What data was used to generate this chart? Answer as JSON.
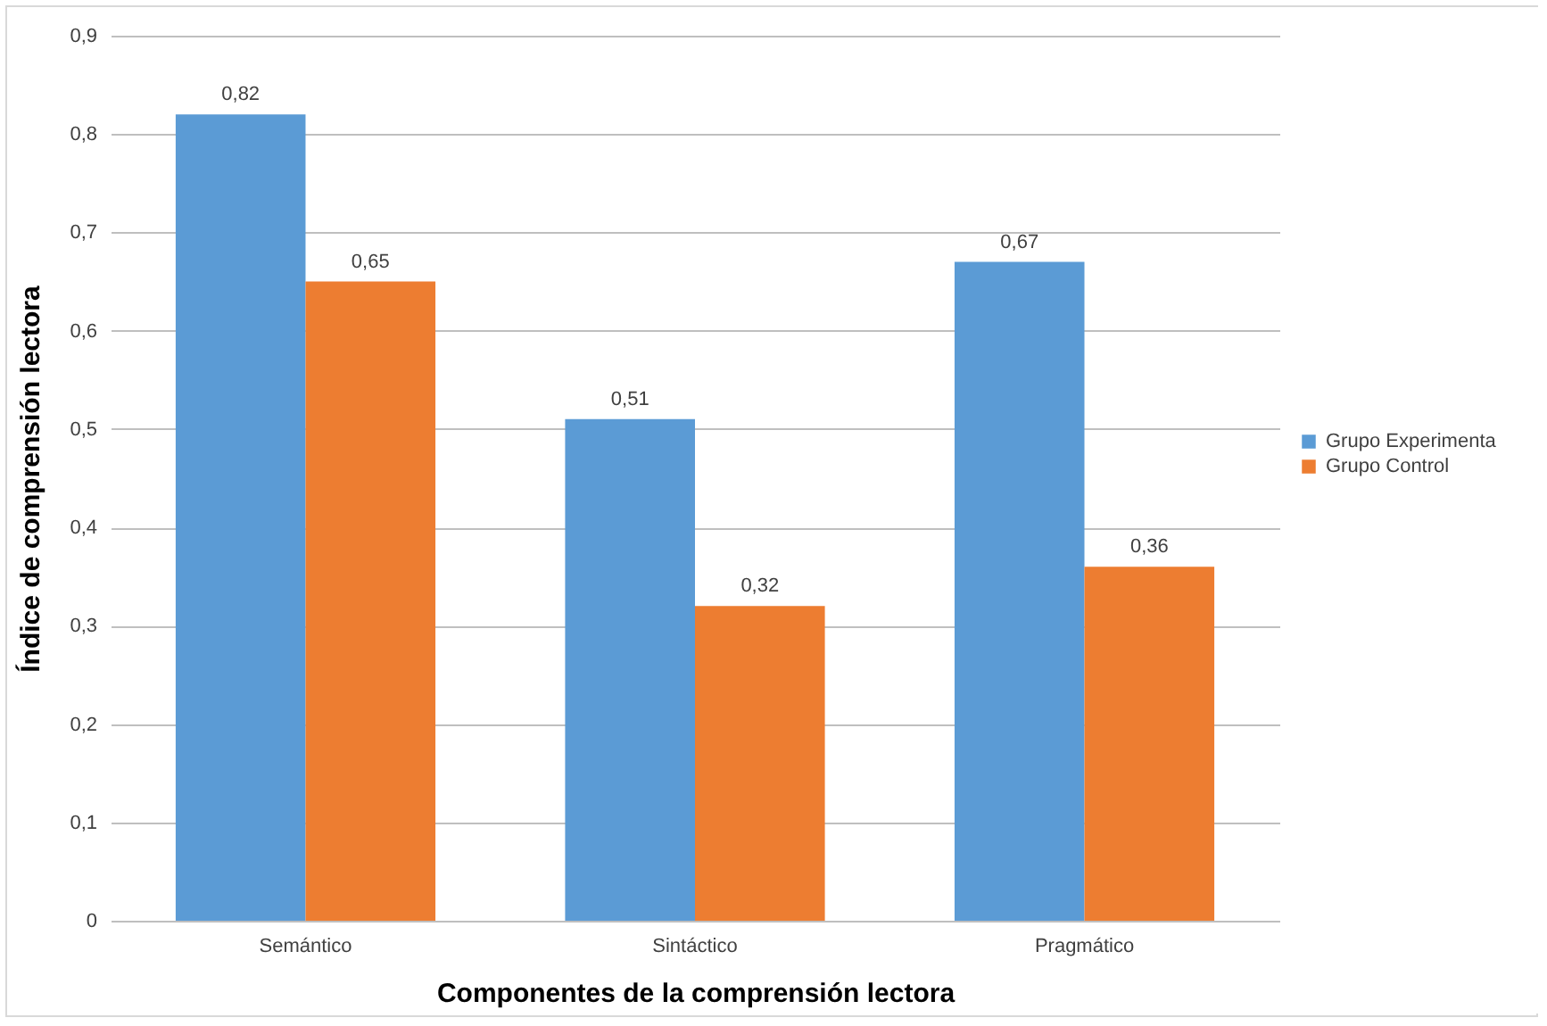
{
  "chart_data": {
    "type": "bar",
    "xlabel": "Componentes de la comprensión lectora",
    "ylabel": "Índice de comprensión lectora",
    "categories": [
      "Semántico",
      "Sintáctico",
      "Pragmático"
    ],
    "series": [
      {
        "name": "Grupo Experimenta",
        "color": "#5b9bd5",
        "values": [
          0.82,
          0.51,
          0.67
        ],
        "value_labels": [
          "0,82",
          "0,51",
          "0,67"
        ]
      },
      {
        "name": "Grupo Control",
        "color": "#ed7d31",
        "values": [
          0.65,
          0.32,
          0.36
        ],
        "value_labels": [
          "0,65",
          "0,32",
          "0,36"
        ]
      }
    ],
    "ylim": [
      0,
      0.9
    ],
    "yticks": [
      {
        "value": 0,
        "label": "0"
      },
      {
        "value": 0.1,
        "label": "0,1"
      },
      {
        "value": 0.2,
        "label": "0,2"
      },
      {
        "value": 0.3,
        "label": "0,3"
      },
      {
        "value": 0.4,
        "label": "0,4"
      },
      {
        "value": 0.5,
        "label": "0,5"
      },
      {
        "value": 0.6,
        "label": "0,6"
      },
      {
        "value": 0.7,
        "label": "0,7"
      },
      {
        "value": 0.8,
        "label": "0,8"
      },
      {
        "value": 0.9,
        "label": "0,9"
      }
    ],
    "grid": "y",
    "legend": "right"
  }
}
